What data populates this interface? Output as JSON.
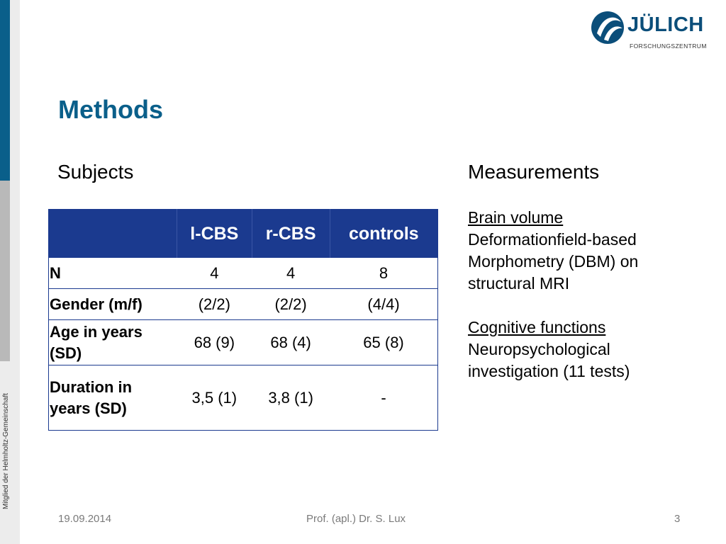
{
  "sidebar": {
    "caption": "Mitglied der Helmholtz-Gemeinschaft",
    "colors": {
      "blue": "#0a5f8a",
      "grey": "#b9b9b9"
    }
  },
  "logo": {
    "name": "JÜLICH",
    "subtitle": "FORSCHUNGSZENTRUM",
    "color": "#0b4e7a"
  },
  "title": "Methods",
  "subjects": {
    "heading": "Subjects",
    "table": {
      "columns": [
        "",
        "l-CBS",
        "r-CBS",
        "controls"
      ],
      "rows": [
        {
          "label": "N",
          "values": [
            "4",
            "4",
            "8"
          ]
        },
        {
          "label": "Gender  (m/f)",
          "values": [
            "(2/2)",
            "(2/2)",
            "(4/4)"
          ]
        },
        {
          "label": "Age in years (SD)",
          "values": [
            "68 (9)",
            "68 (4)",
            "65 (8)"
          ]
        },
        {
          "label": "Duration in years (SD)",
          "values": [
            "3,5 (1)",
            "3,8 (1)",
            "-"
          ]
        }
      ],
      "header_color": "#1b3a8f"
    }
  },
  "measurements": {
    "heading": "Measurements",
    "items": [
      {
        "heading": "Brain volume",
        "text": "Deformationfield-based Morphometry (DBM) on structural MRI"
      },
      {
        "heading": "Cognitive functions",
        "text": "Neuropsychological investigation (11 tests)"
      }
    ]
  },
  "footer": {
    "date": "19.09.2014",
    "author": "Prof. (apl.) Dr. S. Lux",
    "page": "3"
  }
}
